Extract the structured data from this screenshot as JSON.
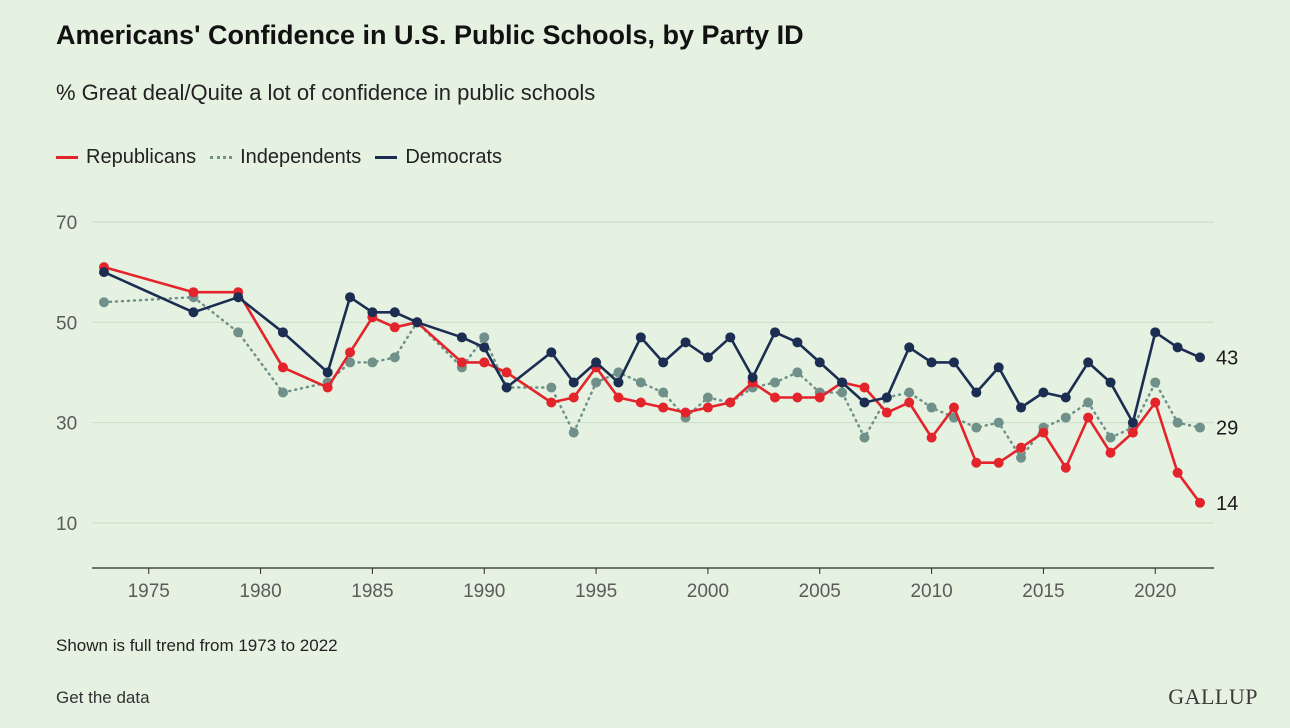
{
  "header": {
    "title": "Americans' Confidence in U.S. Public Schools, by Party ID",
    "subtitle": "% Great deal/Quite a lot of confidence in public schools"
  },
  "footer": {
    "note": "Shown is full trend from 1973 to 2022",
    "get_data": "Get the data",
    "logo": "GALLUP"
  },
  "chart_data": {
    "type": "line",
    "title": "Americans' Confidence in U.S. Public Schools, by Party ID",
    "subtitle": "% Great deal/Quite a lot of confidence in public schools",
    "xlabel": "",
    "ylabel": "",
    "xlim": [
      1973,
      2022
    ],
    "ylim": [
      1,
      70
    ],
    "x_ticks": [
      1975,
      1980,
      1985,
      1990,
      1995,
      2000,
      2005,
      2010,
      2015,
      2020
    ],
    "y_ticks": [
      10,
      30,
      50,
      70
    ],
    "grid": "horizontal",
    "legend_position": "top-left",
    "series": [
      {
        "name": "Republicans",
        "color": "#e3242b",
        "style": "solid",
        "end_label": "14",
        "x": [
          1973,
          1977,
          1979,
          1981,
          1983,
          1984,
          1985,
          1986,
          1987,
          1989,
          1990,
          1991,
          1993,
          1994,
          1995,
          1996,
          1997,
          1998,
          1999,
          2000,
          2001,
          2002,
          2003,
          2004,
          2005,
          2006,
          2007,
          2008,
          2009,
          2010,
          2011,
          2012,
          2013,
          2014,
          2015,
          2016,
          2017,
          2018,
          2019,
          2020,
          2021,
          2022
        ],
        "y": [
          61,
          56,
          56,
          41,
          37,
          44,
          51,
          49,
          50,
          42,
          42,
          40,
          34,
          35,
          41,
          35,
          34,
          33,
          32,
          33,
          34,
          38,
          35,
          35,
          35,
          38,
          37,
          32,
          34,
          27,
          33,
          22,
          22,
          25,
          28,
          21,
          31,
          24,
          28,
          34,
          20,
          14
        ]
      },
      {
        "name": "Independents",
        "color": "#6f918a",
        "style": "dotted",
        "end_label": "29",
        "x": [
          1973,
          1977,
          1979,
          1981,
          1983,
          1984,
          1985,
          1986,
          1987,
          1989,
          1990,
          1991,
          1993,
          1994,
          1995,
          1996,
          1997,
          1998,
          1999,
          2000,
          2001,
          2002,
          2003,
          2004,
          2005,
          2006,
          2007,
          2008,
          2009,
          2010,
          2011,
          2012,
          2013,
          2014,
          2015,
          2016,
          2017,
          2018,
          2019,
          2020,
          2021,
          2022
        ],
        "y": [
          54,
          55,
          48,
          36,
          38,
          42,
          42,
          43,
          50,
          41,
          47,
          37,
          37,
          28,
          38,
          40,
          38,
          36,
          31,
          35,
          34,
          37,
          38,
          40,
          36,
          36,
          27,
          35,
          36,
          33,
          31,
          29,
          30,
          23,
          29,
          31,
          34,
          27,
          29,
          38,
          30,
          29
        ]
      },
      {
        "name": "Democrats",
        "color": "#1b2e52",
        "style": "solid",
        "end_label": "43",
        "x": [
          1973,
          1977,
          1979,
          1981,
          1983,
          1984,
          1985,
          1986,
          1987,
          1989,
          1990,
          1991,
          1993,
          1994,
          1995,
          1996,
          1997,
          1998,
          1999,
          2000,
          2001,
          2002,
          2003,
          2004,
          2005,
          2006,
          2007,
          2008,
          2009,
          2010,
          2011,
          2012,
          2013,
          2014,
          2015,
          2016,
          2017,
          2018,
          2019,
          2020,
          2021,
          2022
        ],
        "y": [
          60,
          52,
          55,
          48,
          40,
          55,
          52,
          52,
          50,
          47,
          45,
          37,
          44,
          38,
          42,
          38,
          47,
          42,
          46,
          43,
          47,
          39,
          48,
          46,
          42,
          38,
          34,
          35,
          45,
          42,
          42,
          36,
          41,
          33,
          36,
          35,
          42,
          38,
          30,
          48,
          45,
          43
        ]
      }
    ]
  }
}
